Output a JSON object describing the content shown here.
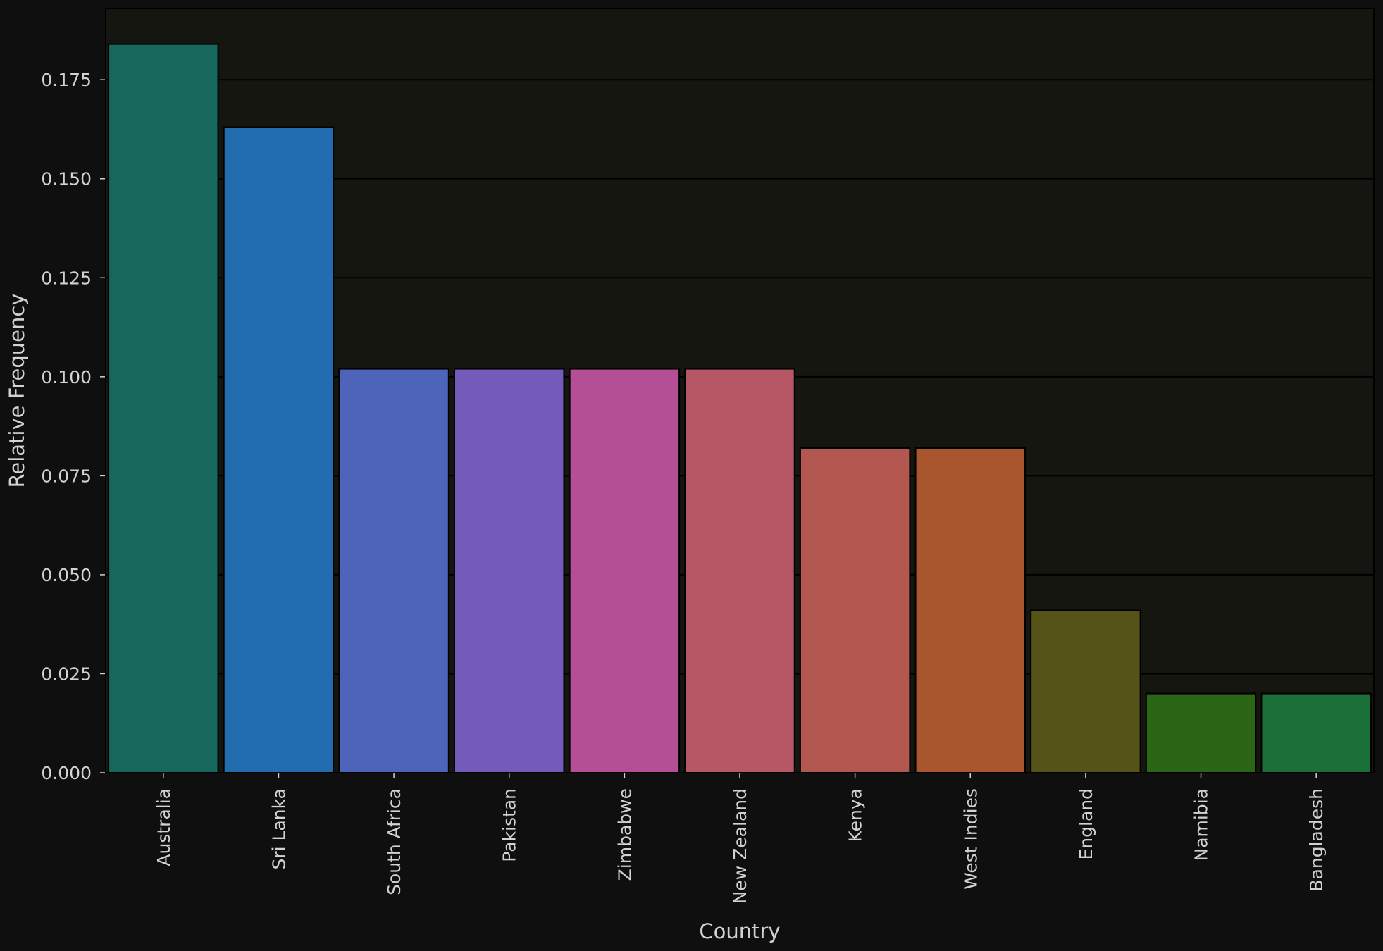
{
  "chart_data": {
    "type": "bar",
    "categories": [
      "Australia",
      "Sri Lanka",
      "South Africa",
      "Pakistan",
      "Zimbabwe",
      "New Zealand",
      "Kenya",
      "West Indies",
      "England",
      "Namibia",
      "Bangladesh"
    ],
    "values": [
      0.184,
      0.163,
      0.102,
      0.102,
      0.102,
      0.102,
      0.082,
      0.082,
      0.041,
      0.02,
      0.02
    ],
    "colors": [
      "#17675c",
      "#226db0",
      "#4e64ba",
      "#735abb",
      "#b54f95",
      "#b65765",
      "#b35751",
      "#a9552e",
      "#565318",
      "#2b6616",
      "#1a7038"
    ],
    "title": "",
    "xlabel": "Country",
    "ylabel": "Relative Frequency",
    "ylim": [
      0,
      0.193
    ],
    "yticks": [
      0.0,
      0.025,
      0.05,
      0.075,
      0.1,
      0.125,
      0.15,
      0.175
    ],
    "ytick_labels": [
      "0.000",
      "0.025",
      "0.050",
      "0.075",
      "0.100",
      "0.125",
      "0.150",
      "0.175"
    ],
    "grid": "horizontal",
    "legend": "none",
    "background": "#0f0f0f",
    "plot_background": "#161610"
  }
}
